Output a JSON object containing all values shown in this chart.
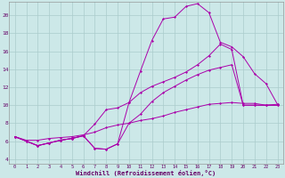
{
  "bg_color": "#cce8e8",
  "grid_color": "#aacccc",
  "line_color": "#aa00aa",
  "xlim": [
    -0.5,
    23.5
  ],
  "ylim": [
    3.5,
    21.5
  ],
  "yticks": [
    4,
    6,
    8,
    10,
    12,
    14,
    16,
    18,
    20
  ],
  "xticks": [
    0,
    1,
    2,
    3,
    4,
    5,
    6,
    7,
    8,
    9,
    10,
    11,
    12,
    13,
    14,
    15,
    16,
    17,
    18,
    19,
    20,
    21,
    22,
    23
  ],
  "xlabel": "Windchill (Refroidissement éolien,°C)",
  "line1_x": [
    0,
    1,
    2,
    3,
    4,
    5,
    6,
    7,
    8,
    9,
    10,
    11,
    12,
    13,
    14,
    15,
    16,
    17,
    18,
    19,
    20,
    21,
    22,
    23
  ],
  "line1_y": [
    6.5,
    6.0,
    5.5,
    5.8,
    6.1,
    6.3,
    6.6,
    5.2,
    5.1,
    5.7,
    10.3,
    13.8,
    17.2,
    19.6,
    19.8,
    21.0,
    21.3,
    20.3,
    17.0,
    16.5,
    15.4,
    13.5,
    12.4,
    10.1
  ],
  "line2_x": [
    0,
    1,
    2,
    3,
    4,
    5,
    6,
    7,
    8,
    9,
    10,
    11,
    12,
    13,
    14,
    15,
    16,
    17,
    18,
    19,
    20,
    21,
    22,
    23
  ],
  "line2_y": [
    6.5,
    6.0,
    5.5,
    5.8,
    6.1,
    6.3,
    6.6,
    7.9,
    9.5,
    9.7,
    10.3,
    11.4,
    12.1,
    12.6,
    13.1,
    13.7,
    14.5,
    15.5,
    16.8,
    16.2,
    10.0,
    10.0,
    10.0,
    10.0
  ],
  "line3_x": [
    0,
    1,
    2,
    3,
    4,
    5,
    6,
    7,
    8,
    9,
    10,
    11,
    12,
    13,
    14,
    15,
    16,
    17,
    18,
    19,
    20,
    21,
    22,
    23
  ],
  "line3_y": [
    6.5,
    6.0,
    5.5,
    5.8,
    6.1,
    6.3,
    6.6,
    5.2,
    5.1,
    5.7,
    8.0,
    9.0,
    10.4,
    11.4,
    12.1,
    12.8,
    13.4,
    13.9,
    14.2,
    14.5,
    10.0,
    10.0,
    10.0,
    10.0
  ],
  "line4_x": [
    0,
    1,
    2,
    3,
    4,
    5,
    6,
    7,
    8,
    9,
    10,
    11,
    12,
    13,
    14,
    15,
    16,
    17,
    18,
    19,
    20,
    21,
    22,
    23
  ],
  "line4_y": [
    6.5,
    6.1,
    6.1,
    6.3,
    6.4,
    6.5,
    6.7,
    7.0,
    7.5,
    7.8,
    8.0,
    8.3,
    8.5,
    8.8,
    9.2,
    9.5,
    9.8,
    10.1,
    10.2,
    10.3,
    10.2,
    10.2,
    10.0,
    10.1
  ]
}
